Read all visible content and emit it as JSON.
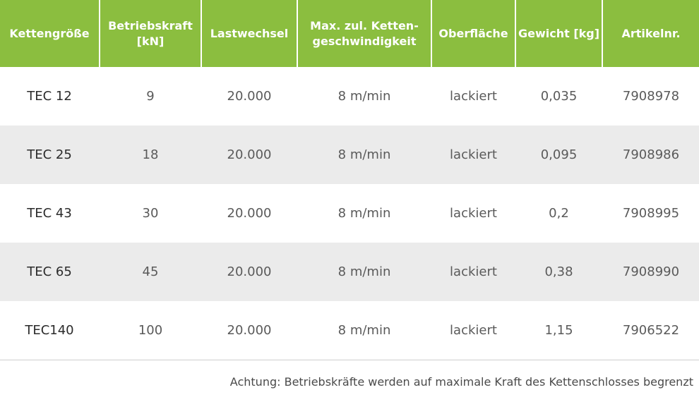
{
  "table": {
    "headers": [
      "Kettengröße",
      "Betriebskraft\n[kN]",
      "Lastwechsel",
      "Max. zul. Ketten-\ngeschwindigkeit",
      "Oberfläche",
      "Gewicht [kg]",
      "Artikelnr."
    ],
    "rows": [
      [
        "TEC 12",
        "9",
        "20.000",
        "8 m/min",
        "lackiert",
        "0,035",
        "7908978"
      ],
      [
        "TEC 25",
        "18",
        "20.000",
        "8 m/min",
        "lackiert",
        "0,095",
        "7908986"
      ],
      [
        "TEC 43",
        "30",
        "20.000",
        "8 m/min",
        "lackiert",
        "0,2",
        "7908995"
      ],
      [
        "TEC 65",
        "45",
        "20.000",
        "8 m/min",
        "lackiert",
        "0,38",
        "7908990"
      ],
      [
        "TEC140",
        "100",
        "20.000",
        "8 m/min",
        "lackiert",
        "1,15",
        "7906522"
      ]
    ]
  },
  "footnote": "Achtung: Betriebskräfte werden auf maximale Kraft des Kettenschlosses begrenzt",
  "colors": {
    "header_bg": "#8bbe3f",
    "header_text": "#ffffff",
    "alt_row": "#ebebeb"
  }
}
